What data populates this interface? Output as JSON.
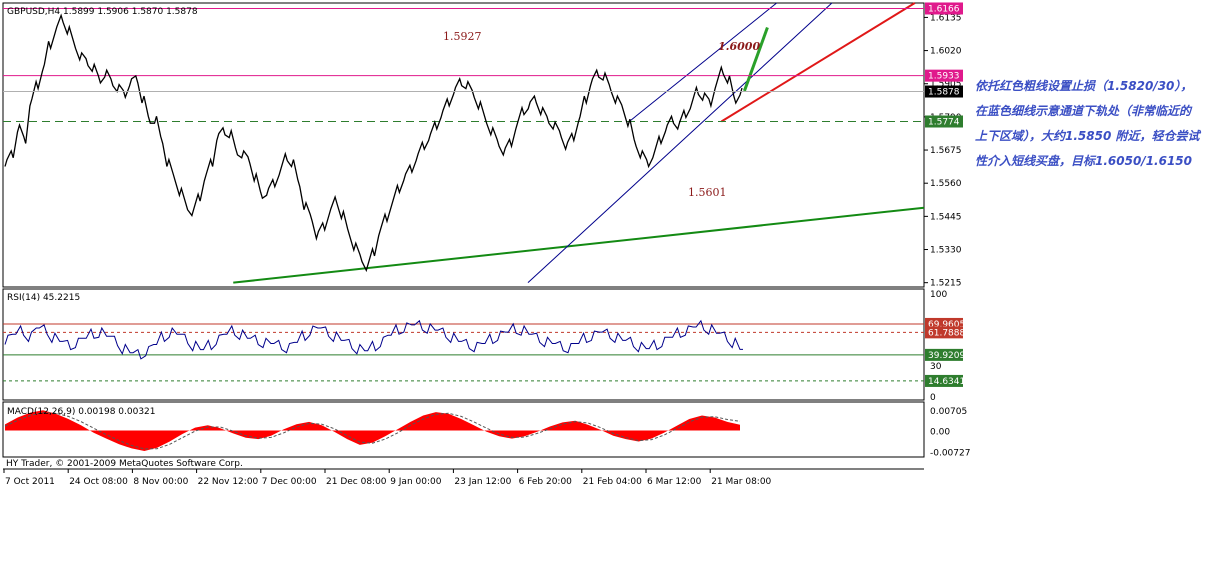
{
  "chart_data": [
    {
      "panel": "price",
      "type": "line",
      "title": "GBPUSD,H4  1.5899 1.5906 1.5870 1.5878",
      "series": [
        {
          "name": "GBPUSD,H4",
          "values": [
            1.563,
            1.566,
            1.575,
            1.571,
            1.584,
            1.59,
            1.596,
            1.604,
            1.609,
            1.613,
            1.609,
            1.604,
            1.6,
            1.598,
            1.596,
            1.592,
            1.594,
            1.591,
            1.589,
            1.587,
            1.591,
            1.592,
            1.585,
            1.578,
            1.578,
            1.571,
            1.563,
            1.558,
            1.553,
            1.548,
            1.546,
            1.551,
            1.558,
            1.563,
            1.572,
            1.574,
            1.573,
            1.567,
            1.566,
            1.564,
            1.558,
            1.552,
            1.553,
            1.556,
            1.56,
            1.565,
            1.563,
            1.556,
            1.548,
            1.544,
            1.538,
            1.541,
            1.546,
            1.55,
            1.545,
            1.539,
            1.534,
            1.53,
            1.527,
            1.532,
            1.539,
            1.544,
            1.549,
            1.554,
            1.558,
            1.561,
            1.565,
            1.569,
            1.572,
            1.576,
            1.58,
            1.584,
            1.588,
            1.591,
            1.59,
            1.587,
            1.583,
            1.578,
            1.574,
            1.57,
            1.567,
            1.57,
            1.576,
            1.581,
            1.583,
            1.585,
            1.581,
            1.578,
            1.576,
            1.573,
            1.569,
            1.572,
            1.578,
            1.585,
            1.591,
            1.594,
            1.593,
            1.589,
            1.585,
            1.582,
            1.577,
            1.57,
            1.566,
            1.563,
            1.566,
            1.571,
            1.575,
            1.578,
            1.576,
            1.58,
            1.583,
            1.588,
            1.586,
            1.584,
            1.59,
            1.595,
            1.592,
            1.585,
            1.5878
          ]
        }
      ],
      "x_tick_labels": [
        "7 Oct 2011",
        "24 Oct 08:00",
        "8 Nov 00:00",
        "22 Nov 12:00",
        "7 Dec 00:00",
        "21 Dec 08:00",
        "9 Jan 00:00",
        "23 Jan 12:00",
        "6 Feb 20:00",
        "21 Feb 04:00",
        "6 Mar 12:00",
        "21 Mar 08:00"
      ],
      "y_tick_labels": [
        "1.6135",
        "1.6020",
        "1.5905",
        "1.5790",
        "1.5675",
        "1.5560",
        "1.5445",
        "1.5330",
        "1.5215"
      ],
      "ylim": [
        1.52,
        1.6185
      ],
      "horizontal_lines": [
        {
          "value": 1.6166,
          "label": "1.6166",
          "color": "#e0198c",
          "style": "solid"
        },
        {
          "value": 1.5933,
          "label": "1.5933",
          "color": "#e0198c",
          "style": "solid"
        },
        {
          "value": 1.5774,
          "label": "1.5774",
          "color": "#2e7d2e",
          "style": "dashed"
        }
      ],
      "current_price": {
        "value": 1.5878,
        "label": "1.5878"
      },
      "annotations": [
        "1.5927",
        "1.5601",
        "1.6000"
      ],
      "trendlines": [
        {
          "name": "green support",
          "color": "#138a13",
          "from": [
            0.25,
            1.5215
          ],
          "to": [
            1.0,
            1.5475
          ]
        },
        {
          "name": "blue lower channel",
          "color": "#00008b",
          "from": [
            0.57,
            1.5215
          ],
          "to": [
            0.9,
            1.6185
          ]
        },
        {
          "name": "blue upper channel",
          "color": "#00008b",
          "from": [
            0.68,
            1.5774
          ],
          "to": [
            0.84,
            1.6185
          ]
        },
        {
          "name": "red support",
          "color": "#e01818",
          "from": [
            0.78,
            1.5774
          ],
          "to": [
            0.99,
            1.6185
          ]
        },
        {
          "name": "green target",
          "color": "#2aa02a",
          "from": [
            0.805,
            1.588
          ],
          "to": [
            0.83,
            1.61
          ]
        }
      ]
    },
    {
      "panel": "rsi",
      "type": "line",
      "title": "RSI(14) 45.2215",
      "ylim": [
        0,
        100
      ],
      "y_tick_labels": [
        "100",
        "30",
        "0"
      ],
      "levels": [
        {
          "value": 69.9605,
          "label": "69.9605",
          "color": "#c0392b"
        },
        {
          "value": 61.7888,
          "label": "61.7888",
          "color": "#c0392b"
        },
        {
          "value": 39.9209,
          "label": "39.9209",
          "color": "#2e7d2e"
        },
        {
          "value": 14.6341,
          "label": "14.6341",
          "color": "#2e7d2e"
        }
      ],
      "series": [
        {
          "name": "RSI(14)",
          "values": [
            55,
            60,
            63,
            58,
            66,
            64,
            57,
            53,
            49,
            52,
            56,
            60,
            62,
            58,
            53,
            46,
            42,
            40,
            44,
            50,
            57,
            62,
            60,
            55,
            49,
            45,
            49,
            55,
            60,
            63,
            60,
            56,
            54,
            52,
            51,
            49,
            47,
            52,
            58,
            64,
            66,
            62,
            58,
            54,
            50,
            46,
            44,
            48,
            53,
            59,
            64,
            67,
            69,
            68,
            66,
            64,
            61,
            57,
            53,
            50,
            48,
            51,
            55,
            59,
            62,
            65,
            64,
            60,
            56,
            53,
            51,
            48,
            47,
            51,
            56,
            59,
            62,
            60,
            57,
            54,
            52,
            48,
            46,
            49,
            53,
            57,
            61,
            64,
            67,
            68,
            65,
            61,
            57,
            52,
            45.2215
          ]
        }
      ]
    },
    {
      "panel": "macd",
      "type": "area",
      "title": "MACD(12,26,9) 0.00198 0.00321",
      "ylim": [
        -0.0085,
        0.0085
      ],
      "y_tick_labels": [
        "0.00705",
        "0.00",
        "-0.00727"
      ],
      "series": [
        {
          "name": "MACD(12,26,9)",
          "values": [
            0.0021,
            0.0045,
            0.0062,
            0.007,
            0.0058,
            0.004,
            0.0018,
            -0.0008,
            -0.0028,
            -0.0048,
            -0.0062,
            -0.0071,
            -0.006,
            -0.0038,
            -0.0012,
            0.001,
            0.0018,
            0.0008,
            -0.001,
            -0.0025,
            -0.003,
            -0.0018,
            0.0004,
            0.0022,
            0.003,
            0.0018,
            -0.0005,
            -0.003,
            -0.005,
            -0.0042,
            -0.002,
            0.0005,
            0.003,
            0.0052,
            0.0064,
            0.0058,
            0.004,
            0.0018,
            -0.0004,
            -0.002,
            -0.0028,
            -0.002,
            -0.0004,
            0.0014,
            0.0028,
            0.0034,
            0.002,
            0.0002,
            -0.0018,
            -0.003,
            -0.0038,
            -0.0028,
            -0.0008,
            0.0016,
            0.004,
            0.0052,
            0.0045,
            0.003,
            0.002
          ]
        },
        {
          "name": "Signal",
          "values": [
            0.0015,
            0.0035,
            0.0052,
            0.0062,
            0.006,
            0.0049,
            0.0031,
            0.0008,
            -0.0015,
            -0.0035,
            -0.0052,
            -0.0064,
            -0.0063,
            -0.0048,
            -0.0025,
            -0.0002,
            0.0012,
            0.0012,
            -0.0002,
            -0.0018,
            -0.0027,
            -0.0024,
            -0.0008,
            0.0012,
            0.0025,
            0.0022,
            0.0006,
            -0.0018,
            -0.004,
            -0.0044,
            -0.003,
            -0.0008,
            0.0018,
            0.004,
            0.0056,
            0.006,
            0.0049,
            0.003,
            0.0008,
            -0.0012,
            -0.0024,
            -0.0023,
            -0.001,
            0.0006,
            0.0022,
            0.0031,
            0.0026,
            0.001,
            -0.001,
            -0.0025,
            -0.0035,
            -0.0032,
            -0.0016,
            0.0006,
            0.003,
            0.0046,
            0.0048,
            0.0038,
            0.0032
          ]
        }
      ]
    }
  ],
  "footer": {
    "credit": "HY Trader, © 2001-2009 MetaQuotes Software Corp."
  },
  "note": {
    "lines": [
      "依托红色粗线设置止损（1.5820/30），",
      "在蓝色细线示意通道下轨处（非常临近的",
      "上下区域），大约1.5850 附近，轻仓尝试",
      "性介入短线买盘，目标1.6050/1.6150"
    ]
  },
  "colors": {
    "price": "#000000",
    "rsi": "#00008b",
    "macd_fill": "#ff0000",
    "signal": "#555555"
  }
}
